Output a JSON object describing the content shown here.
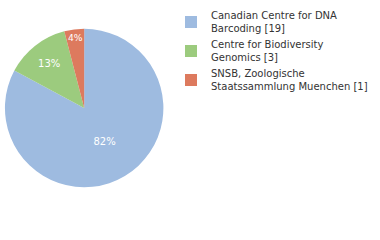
{
  "chart_data": {
    "type": "pie",
    "categories": [
      "Canadian Centre for DNA\nBarcoding [19]",
      "Centre for Biodiversity\nGenomics [3]",
      "SNSB, Zoologische\nStaatssammlung Muenchen [1]"
    ],
    "values": [
      82,
      13,
      4
    ],
    "value_labels": [
      "82%",
      "13%",
      "4%"
    ],
    "colors": [
      "#9ebbe0",
      "#9ccb7e",
      "#dd7a5e"
    ],
    "data_labels": true,
    "legend": "top right"
  }
}
